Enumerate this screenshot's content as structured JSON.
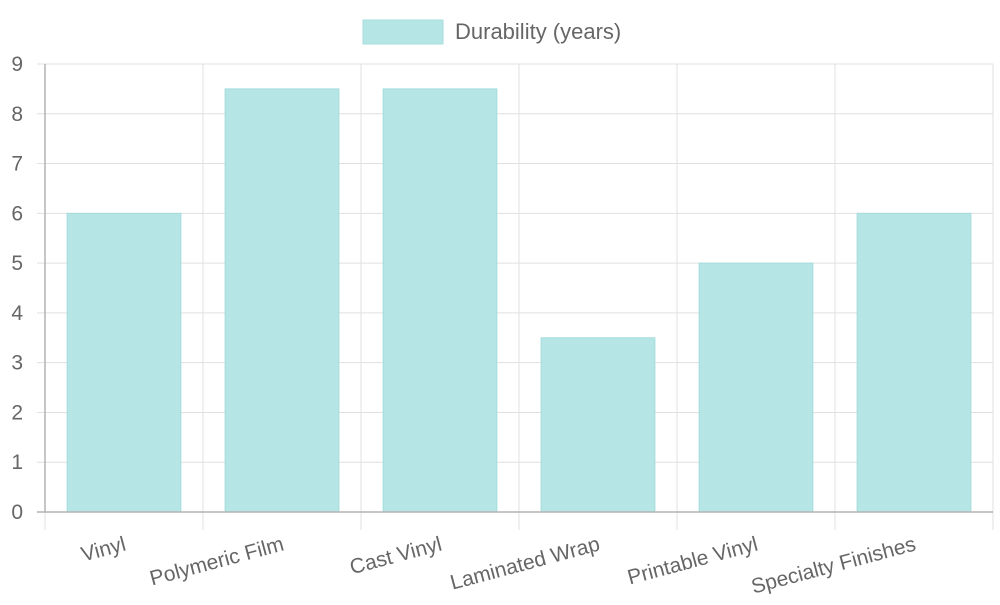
{
  "chart_data": {
    "type": "bar",
    "categories": [
      "Vinyl",
      "Polymeric Film",
      "Cast Vinyl",
      "Laminated Wrap",
      "Printable Vinyl",
      "Specialty Finishes"
    ],
    "series": [
      {
        "name": "Durability (years)",
        "values": [
          6,
          8.5,
          8.5,
          3.5,
          5,
          6
        ]
      }
    ],
    "ylim": [
      0,
      9
    ],
    "yticks": [
      0,
      1,
      2,
      3,
      4,
      5,
      6,
      7,
      8,
      9
    ],
    "grid": true,
    "legend_position": "top-center",
    "colors": {
      "bar_fill": "#b6e5e5",
      "bar_stroke": "#a5dcdc"
    }
  }
}
